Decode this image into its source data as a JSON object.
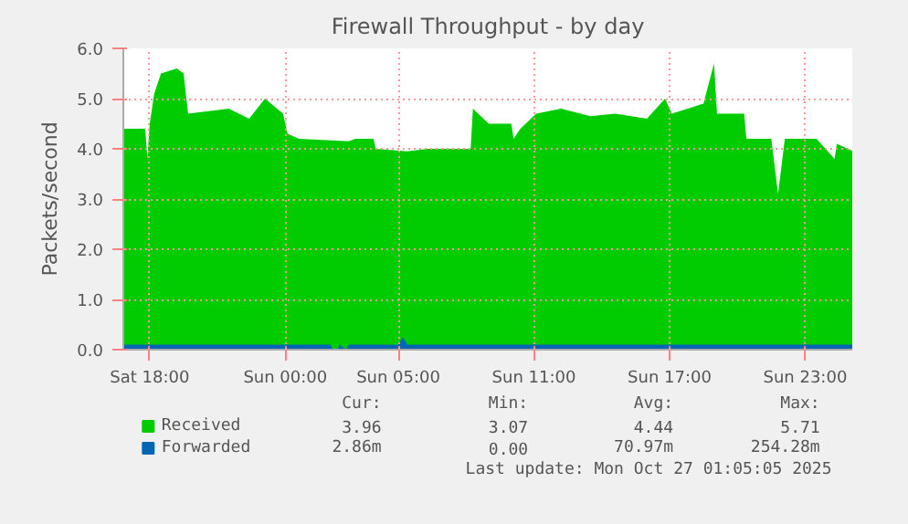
{
  "chart_data": {
    "type": "area",
    "title": "Firewall Throughput - by day",
    "ylabel": "Packets/second",
    "xlim": [
      "2025-10-25T16:50",
      "2025-10-27T01:05"
    ],
    "ylim": [
      0,
      6
    ],
    "xticks": [
      {
        "value": "2025-10-25T18:00",
        "label": "Sat 18:00"
      },
      {
        "value": "2025-10-26T00:00",
        "label": "Sun 00:00"
      },
      {
        "value": "2025-10-26T05:00",
        "label": "Sun 05:00"
      },
      {
        "value": "2025-10-26T11:00",
        "label": "Sun 11:00"
      },
      {
        "value": "2025-10-26T17:00",
        "label": "Sun 17:00"
      },
      {
        "value": "2025-10-26T23:00",
        "label": "Sun 23:00"
      }
    ],
    "yticks": [
      {
        "value": 0,
        "label": "0.0"
      },
      {
        "value": 1,
        "label": "1.0"
      },
      {
        "value": 2,
        "label": "2.0"
      },
      {
        "value": 3,
        "label": "3.0"
      },
      {
        "value": 4,
        "label": "4.0"
      },
      {
        "value": 5,
        "label": "5.0"
      },
      {
        "value": 6,
        "label": "6.0"
      }
    ],
    "grid": true,
    "legend": "bottom",
    "series": [
      {
        "name": "Received",
        "color": "#00cc00",
        "x": [
          "2025-10-25T16:50",
          "2025-10-25T17:48",
          "2025-10-25T17:54",
          "2025-10-25T18:00",
          "2025-10-25T18:12",
          "2025-10-25T18:30",
          "2025-10-25T19:12",
          "2025-10-25T19:30",
          "2025-10-25T19:42",
          "2025-10-25T21:30",
          "2025-10-25T22:24",
          "2025-10-25T23:06",
          "2025-10-25T23:54",
          "2025-10-26T00:06",
          "2025-10-26T00:36",
          "2025-10-26T02:48",
          "2025-10-26T03:06",
          "2025-10-26T03:54",
          "2025-10-26T04:00",
          "2025-10-26T05:24",
          "2025-10-26T06:18",
          "2025-10-26T08:06",
          "2025-10-26T08:12",
          "2025-10-26T08:18",
          "2025-10-26T09:00",
          "2025-10-26T10:00",
          "2025-10-26T10:06",
          "2025-10-26T10:24",
          "2025-10-26T11:06",
          "2025-10-26T12:12",
          "2025-10-26T13:30",
          "2025-10-26T14:36",
          "2025-10-26T16:00",
          "2025-10-26T16:48",
          "2025-10-26T17:06",
          "2025-10-26T18:30",
          "2025-10-26T18:58",
          "2025-10-26T19:06",
          "2025-10-26T20:18",
          "2025-10-26T20:24",
          "2025-10-26T21:30",
          "2025-10-26T21:48",
          "2025-10-26T22:06",
          "2025-10-26T23:30",
          "2025-10-27T00:18",
          "2025-10-27T00:24",
          "2025-10-27T01:05"
        ],
        "values": [
          4.4,
          4.4,
          3.8,
          4.5,
          5.1,
          5.5,
          5.6,
          5.5,
          4.7,
          4.8,
          4.6,
          5.0,
          4.7,
          4.3,
          4.2,
          4.15,
          4.2,
          4.2,
          4.0,
          3.95,
          4.0,
          4.0,
          4.0,
          4.8,
          4.5,
          4.5,
          4.2,
          4.4,
          4.7,
          4.8,
          4.65,
          4.7,
          4.6,
          5.0,
          4.7,
          4.9,
          5.7,
          4.7,
          4.7,
          4.2,
          4.2,
          3.1,
          4.2,
          4.2,
          3.8,
          4.1,
          3.96
        ]
      },
      {
        "name": "Forwarded",
        "color": "#0066b3",
        "x": [
          "2025-10-25T16:50",
          "2025-10-26T02:00",
          "2025-10-26T02:06",
          "2025-10-26T02:18",
          "2025-10-26T02:24",
          "2025-10-26T02:42",
          "2025-10-26T02:48",
          "2025-10-26T05:00",
          "2025-10-26T05:12",
          "2025-10-26T05:24",
          "2025-10-27T01:05"
        ],
        "values": [
          0.1,
          0.1,
          0.0,
          0.0,
          0.1,
          0.0,
          0.1,
          0.1,
          0.25,
          0.1,
          0.1
        ]
      }
    ],
    "annotations": [
      "Cur:",
      "Min:",
      "Avg:",
      "Max:",
      "3.96",
      "3.07",
      "4.44",
      "5.71",
      "2.86m",
      "0.00",
      "70.97m",
      "254.28m",
      "Last update: Mon Oct 27 01:05:05 2025"
    ]
  }
}
